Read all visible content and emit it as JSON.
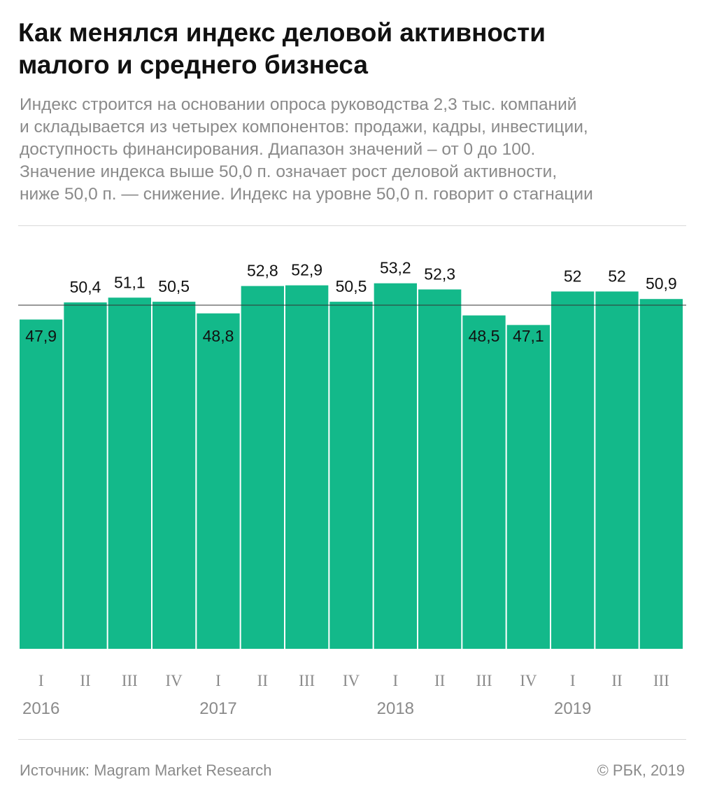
{
  "title_line1": "Как менялся индекс деловой активности",
  "title_line2": "малого и среднего бизнеса",
  "subtitle_lines": [
    "Индекс строится на основании опроса руководства 2,3 тыс. компаний",
    "и складывается из четырех компонентов: продажи, кадры, инвестиции,",
    "доступность финансирования. Диапазон значений – от 0 до 100.",
    "Значение индекса выше 50,0 п. означает рост деловой активности,",
    "ниже 50,0 п. — снижение. Индекс на уровне 50,0 п. говорит о стагнации"
  ],
  "source": "Источник: Magram Market Research",
  "copyright": "© РБК, 2019",
  "colors": {
    "bar": "#13b98a",
    "reference_line": "#333333",
    "text": "#111111",
    "muted": "#8a8a8a"
  },
  "chart_data": {
    "type": "bar",
    "categories": [
      "I",
      "II",
      "III",
      "IV",
      "I",
      "II",
      "III",
      "IV",
      "I",
      "II",
      "III",
      "IV",
      "I",
      "II",
      "III"
    ],
    "years": [
      {
        "label": "2016",
        "start": 0
      },
      {
        "label": "2017",
        "start": 4
      },
      {
        "label": "2018",
        "start": 8
      },
      {
        "label": "2019",
        "start": 12
      }
    ],
    "values": [
      47.9,
      50.4,
      51.1,
      50.5,
      48.8,
      52.8,
      52.9,
      50.5,
      53.2,
      52.3,
      48.5,
      47.1,
      52,
      52,
      50.9
    ],
    "value_labels": [
      "47,9",
      "50,4",
      "51,1",
      "50,5",
      "48,8",
      "52,8",
      "52,9",
      "50,5",
      "53,2",
      "52,3",
      "48,5",
      "47,1",
      "52",
      "52",
      "50,9"
    ],
    "reference_value": 50,
    "grid": false
  }
}
